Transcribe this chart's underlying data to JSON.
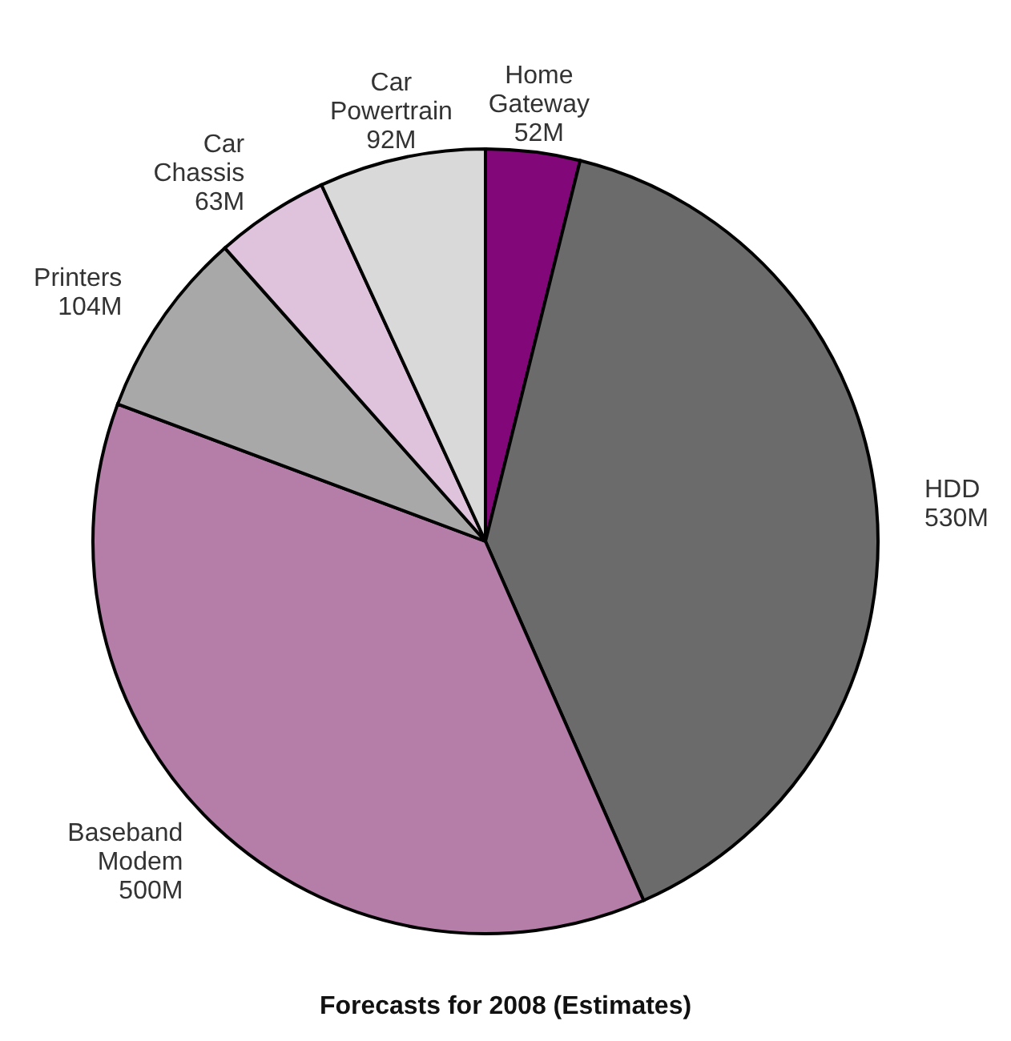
{
  "chart_data": {
    "type": "pie",
    "title": "Forecasts for 2008 (Estimates)",
    "categories": [
      "Home Gateway",
      "HDD",
      "Baseband Modem",
      "Printers",
      "Car Chassis",
      "Car Powertrain"
    ],
    "values": [
      52,
      530,
      500,
      104,
      63,
      92
    ],
    "value_labels": [
      "52M",
      "530M",
      "500M",
      "104M",
      "63M",
      "92M"
    ],
    "colors": [
      "#82087a",
      "#6b6b6b",
      "#b47ea8",
      "#a8a8a8",
      "#dfc3dc",
      "#d9d9d9"
    ],
    "legend": false
  }
}
